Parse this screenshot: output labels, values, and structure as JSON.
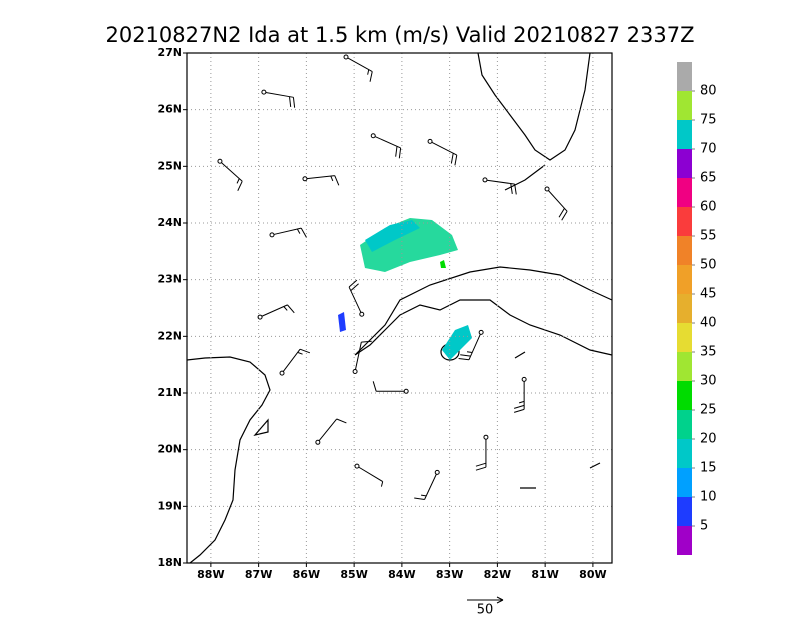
{
  "title": "20210827N2 Ida at 1.5 km (m/s) Valid 20210827  2337Z",
  "map": {
    "lon_range": [
      -88.5,
      -79.6
    ],
    "lat_range": [
      18,
      27
    ],
    "lon_ticks": [
      {
        "value": -88,
        "label": "88W"
      },
      {
        "value": -87,
        "label": "87W"
      },
      {
        "value": -86,
        "label": "86W"
      },
      {
        "value": -85,
        "label": "85W"
      },
      {
        "value": -84,
        "label": "84W"
      },
      {
        "value": -83,
        "label": "83W"
      },
      {
        "value": -82,
        "label": "82W"
      },
      {
        "value": -81,
        "label": "81W"
      },
      {
        "value": -80,
        "label": "80W"
      }
    ],
    "lat_ticks": [
      {
        "value": 18,
        "label": "18N"
      },
      {
        "value": 19,
        "label": "19N"
      },
      {
        "value": 20,
        "label": "20N"
      },
      {
        "value": 21,
        "label": "21N"
      },
      {
        "value": 22,
        "label": "22N"
      },
      {
        "value": 23,
        "label": "23N"
      },
      {
        "value": 24,
        "label": "24N"
      },
      {
        "value": 25,
        "label": "25N"
      },
      {
        "value": 26,
        "label": "26N"
      },
      {
        "value": 27,
        "label": "27N"
      }
    ]
  },
  "colorbar": {
    "levels": [
      5,
      10,
      15,
      20,
      25,
      30,
      35,
      40,
      45,
      50,
      55,
      60,
      65,
      70,
      75,
      80
    ],
    "colors": [
      "#a000c8",
      "#1e3cff",
      "#00a0ff",
      "#00c8c8",
      "#00d28c",
      "#00dc00",
      "#a0e632",
      "#e6dc32",
      "#e6af2d",
      "#f0a028",
      "#f08228",
      "#fa3c3c",
      "#f00082",
      "#8c00d2",
      "#00c8c8",
      "#a0e632",
      "#aaaaaa"
    ]
  },
  "barbs": [
    {
      "lon": -86.89,
      "lat": 26.31,
      "direction": 100,
      "speed": 20
    },
    {
      "lon": -85.17,
      "lat": 26.93,
      "direction": 119,
      "speed": 15
    },
    {
      "lon": -84.6,
      "lat": 25.54,
      "direction": 114,
      "speed": 20
    },
    {
      "lon": -83.41,
      "lat": 25.44,
      "direction": 117,
      "speed": 20
    },
    {
      "lon": -87.81,
      "lat": 25.09,
      "direction": 132,
      "speed": 15
    },
    {
      "lon": -86.03,
      "lat": 24.78,
      "direction": 84,
      "speed": 15
    },
    {
      "lon": -82.26,
      "lat": 24.76,
      "direction": 98,
      "speed": 20
    },
    {
      "lon": -80.96,
      "lat": 24.6,
      "direction": 138,
      "speed": 20
    },
    {
      "lon": -86.72,
      "lat": 23.79,
      "direction": 77,
      "speed": 15
    },
    {
      "lon": -86.97,
      "lat": 22.34,
      "direction": 66,
      "speed": 15
    },
    {
      "lon": -84.84,
      "lat": 22.39,
      "direction": 335,
      "speed": 20
    },
    {
      "lon": -86.51,
      "lat": 21.35,
      "direction": 37,
      "speed": 15
    },
    {
      "lon": -84.98,
      "lat": 21.38,
      "direction": 12,
      "speed": 10
    },
    {
      "lon": -82.34,
      "lat": 22.07,
      "direction": 204,
      "speed": 25
    },
    {
      "lon": -81.44,
      "lat": 21.24,
      "direction": 180,
      "speed": 25
    },
    {
      "lon": -83.91,
      "lat": 21.03,
      "direction": 270,
      "speed": 10
    },
    {
      "lon": -85.76,
      "lat": 20.13,
      "direction": 39,
      "speed": 10
    },
    {
      "lon": -82.24,
      "lat": 20.22,
      "direction": 180,
      "speed": 20
    },
    {
      "lon": -84.94,
      "lat": 19.71,
      "direction": 121,
      "speed": 5
    },
    {
      "lon": -83.26,
      "lat": 19.6,
      "direction": 205,
      "speed": 15
    }
  ],
  "reference_vector": 50
}
